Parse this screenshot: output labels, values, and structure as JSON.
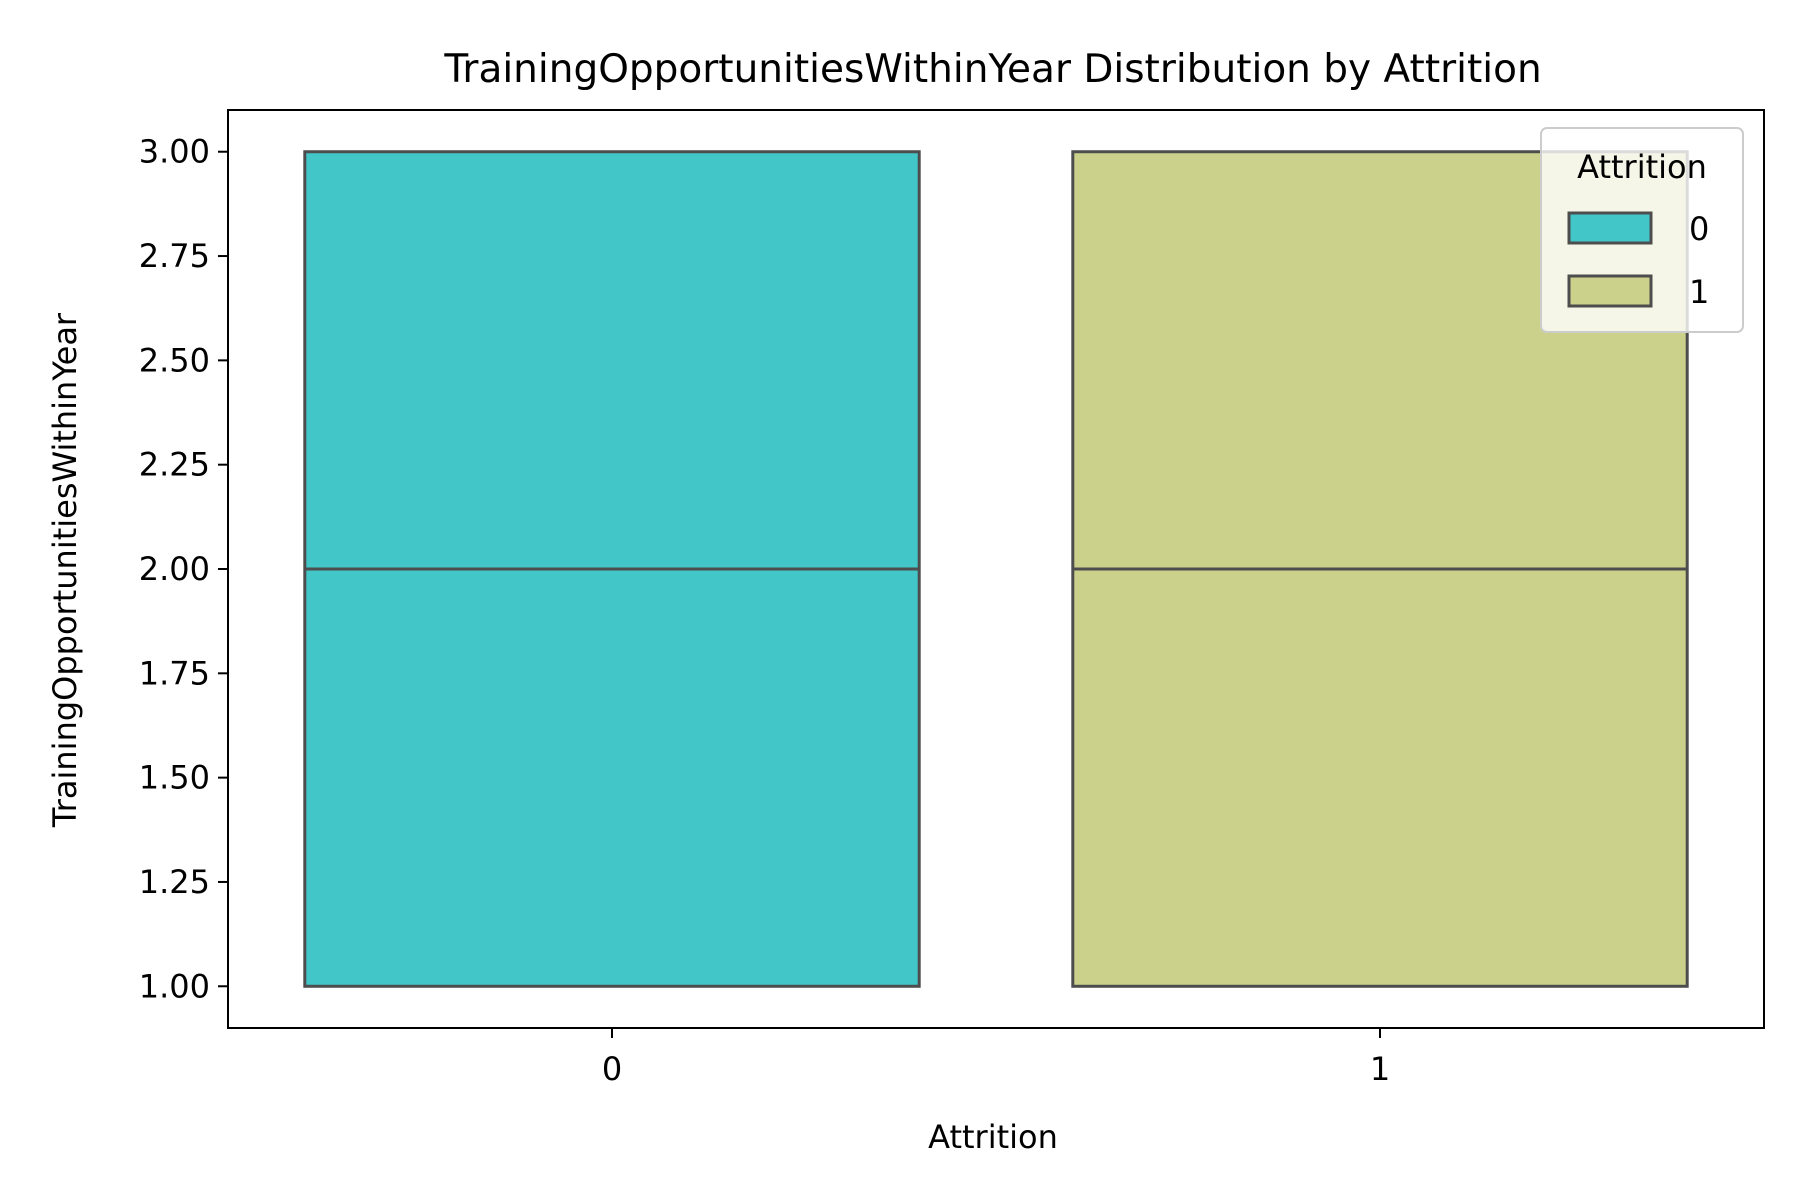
{
  "chart_data": {
    "type": "box",
    "title": "TrainingOpportunitiesWithinYear Distribution by Attrition",
    "xlabel": "Attrition",
    "ylabel": "TrainingOpportunitiesWithinYear",
    "categories": [
      "0",
      "1"
    ],
    "ylim": [
      0.9,
      3.1
    ],
    "yticks": [
      1.0,
      1.25,
      1.5,
      1.75,
      2.0,
      2.25,
      2.5,
      2.75,
      3.0
    ],
    "ytick_labels": [
      "1.00",
      "1.25",
      "1.50",
      "1.75",
      "2.00",
      "2.25",
      "2.50",
      "2.75",
      "3.00"
    ],
    "series": [
      {
        "name": "0",
        "category": "0",
        "min": 1.0,
        "q1": 1.0,
        "median": 2.0,
        "q3": 3.0,
        "max": 3.0,
        "color": "#42c6c8"
      },
      {
        "name": "1",
        "category": "1",
        "min": 1.0,
        "q1": 1.0,
        "median": 2.0,
        "q3": 3.0,
        "max": 3.0,
        "color": "#cbd08b"
      }
    ],
    "legend": {
      "title": "Attrition",
      "placement": "top-right",
      "entries": [
        "0",
        "1"
      ]
    },
    "grid": false,
    "edge_color": "#4d4d4d"
  }
}
